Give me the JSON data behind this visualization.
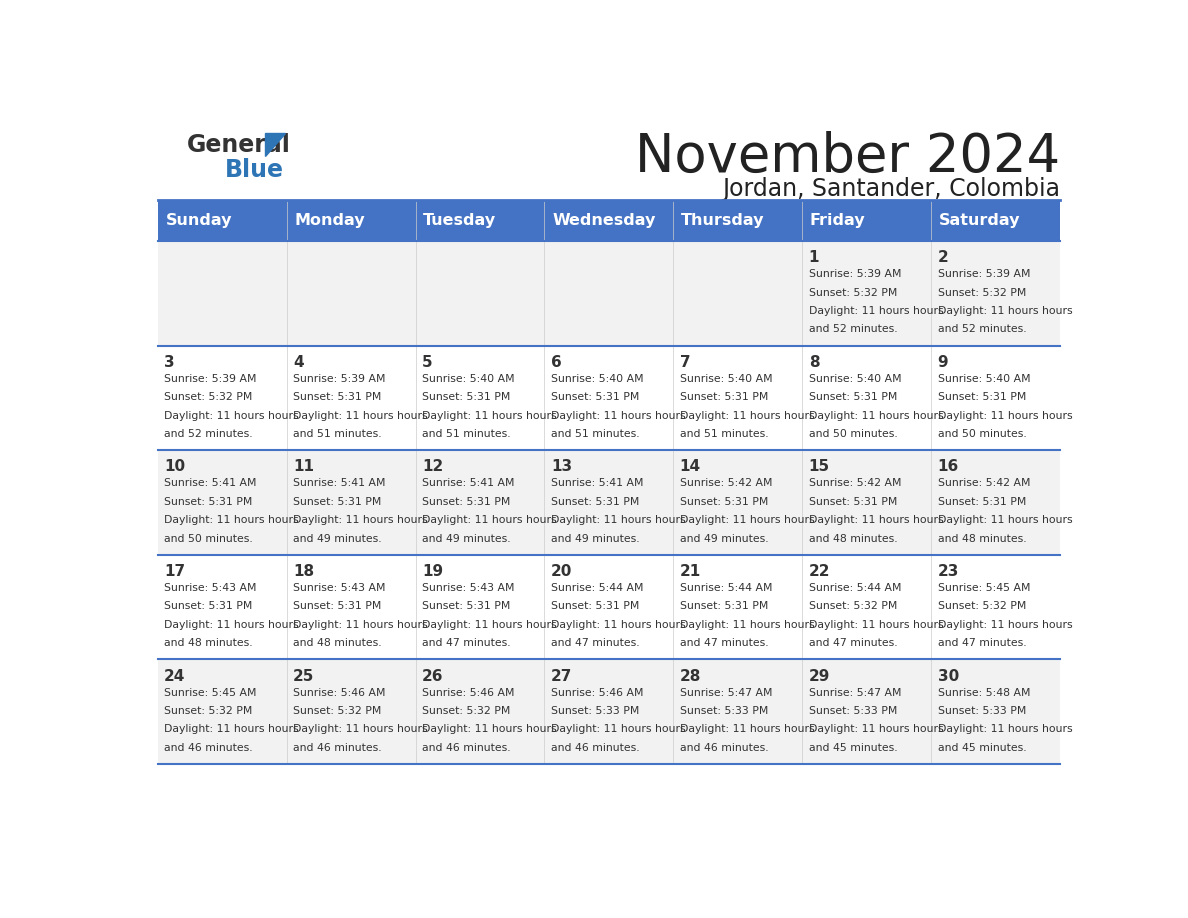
{
  "title": "November 2024",
  "subtitle": "Jordan, Santander, Colombia",
  "days_of_week": [
    "Sunday",
    "Monday",
    "Tuesday",
    "Wednesday",
    "Thursday",
    "Friday",
    "Saturday"
  ],
  "header_bg": "#4472C4",
  "header_text": "#FFFFFF",
  "row1_bg": "#F2F2F2",
  "row2_bg": "#FFFFFF",
  "day_number_color": "#333333",
  "text_color": "#333333",
  "line_color": "#4472C4",
  "calendar_data": [
    [
      {
        "day": "",
        "sunrise": "",
        "sunset": "",
        "daylight": ""
      },
      {
        "day": "",
        "sunrise": "",
        "sunset": "",
        "daylight": ""
      },
      {
        "day": "",
        "sunrise": "",
        "sunset": "",
        "daylight": ""
      },
      {
        "day": "",
        "sunrise": "",
        "sunset": "",
        "daylight": ""
      },
      {
        "day": "",
        "sunrise": "",
        "sunset": "",
        "daylight": ""
      },
      {
        "day": "1",
        "sunrise": "5:39 AM",
        "sunset": "5:32 PM",
        "daylight": "11 hours and 52 minutes."
      },
      {
        "day": "2",
        "sunrise": "5:39 AM",
        "sunset": "5:32 PM",
        "daylight": "11 hours and 52 minutes."
      }
    ],
    [
      {
        "day": "3",
        "sunrise": "5:39 AM",
        "sunset": "5:32 PM",
        "daylight": "11 hours and 52 minutes."
      },
      {
        "day": "4",
        "sunrise": "5:39 AM",
        "sunset": "5:31 PM",
        "daylight": "11 hours and 51 minutes."
      },
      {
        "day": "5",
        "sunrise": "5:40 AM",
        "sunset": "5:31 PM",
        "daylight": "11 hours and 51 minutes."
      },
      {
        "day": "6",
        "sunrise": "5:40 AM",
        "sunset": "5:31 PM",
        "daylight": "11 hours and 51 minutes."
      },
      {
        "day": "7",
        "sunrise": "5:40 AM",
        "sunset": "5:31 PM",
        "daylight": "11 hours and 51 minutes."
      },
      {
        "day": "8",
        "sunrise": "5:40 AM",
        "sunset": "5:31 PM",
        "daylight": "11 hours and 50 minutes."
      },
      {
        "day": "9",
        "sunrise": "5:40 AM",
        "sunset": "5:31 PM",
        "daylight": "11 hours and 50 minutes."
      }
    ],
    [
      {
        "day": "10",
        "sunrise": "5:41 AM",
        "sunset": "5:31 PM",
        "daylight": "11 hours and 50 minutes."
      },
      {
        "day": "11",
        "sunrise": "5:41 AM",
        "sunset": "5:31 PM",
        "daylight": "11 hours and 49 minutes."
      },
      {
        "day": "12",
        "sunrise": "5:41 AM",
        "sunset": "5:31 PM",
        "daylight": "11 hours and 49 minutes."
      },
      {
        "day": "13",
        "sunrise": "5:41 AM",
        "sunset": "5:31 PM",
        "daylight": "11 hours and 49 minutes."
      },
      {
        "day": "14",
        "sunrise": "5:42 AM",
        "sunset": "5:31 PM",
        "daylight": "11 hours and 49 minutes."
      },
      {
        "day": "15",
        "sunrise": "5:42 AM",
        "sunset": "5:31 PM",
        "daylight": "11 hours and 48 minutes."
      },
      {
        "day": "16",
        "sunrise": "5:42 AM",
        "sunset": "5:31 PM",
        "daylight": "11 hours and 48 minutes."
      }
    ],
    [
      {
        "day": "17",
        "sunrise": "5:43 AM",
        "sunset": "5:31 PM",
        "daylight": "11 hours and 48 minutes."
      },
      {
        "day": "18",
        "sunrise": "5:43 AM",
        "sunset": "5:31 PM",
        "daylight": "11 hours and 48 minutes."
      },
      {
        "day": "19",
        "sunrise": "5:43 AM",
        "sunset": "5:31 PM",
        "daylight": "11 hours and 47 minutes."
      },
      {
        "day": "20",
        "sunrise": "5:44 AM",
        "sunset": "5:31 PM",
        "daylight": "11 hours and 47 minutes."
      },
      {
        "day": "21",
        "sunrise": "5:44 AM",
        "sunset": "5:31 PM",
        "daylight": "11 hours and 47 minutes."
      },
      {
        "day": "22",
        "sunrise": "5:44 AM",
        "sunset": "5:32 PM",
        "daylight": "11 hours and 47 minutes."
      },
      {
        "day": "23",
        "sunrise": "5:45 AM",
        "sunset": "5:32 PM",
        "daylight": "11 hours and 47 minutes."
      }
    ],
    [
      {
        "day": "24",
        "sunrise": "5:45 AM",
        "sunset": "5:32 PM",
        "daylight": "11 hours and 46 minutes."
      },
      {
        "day": "25",
        "sunrise": "5:46 AM",
        "sunset": "5:32 PM",
        "daylight": "11 hours and 46 minutes."
      },
      {
        "day": "26",
        "sunrise": "5:46 AM",
        "sunset": "5:32 PM",
        "daylight": "11 hours and 46 minutes."
      },
      {
        "day": "27",
        "sunrise": "5:46 AM",
        "sunset": "5:33 PM",
        "daylight": "11 hours and 46 minutes."
      },
      {
        "day": "28",
        "sunrise": "5:47 AM",
        "sunset": "5:33 PM",
        "daylight": "11 hours and 46 minutes."
      },
      {
        "day": "29",
        "sunrise": "5:47 AM",
        "sunset": "5:33 PM",
        "daylight": "11 hours and 45 minutes."
      },
      {
        "day": "30",
        "sunrise": "5:48 AM",
        "sunset": "5:33 PM",
        "daylight": "11 hours and 45 minutes."
      }
    ]
  ]
}
